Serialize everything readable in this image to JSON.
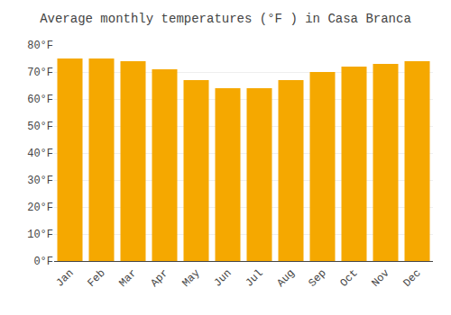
{
  "chart_data": {
    "type": "bar",
    "title": "Average monthly temperatures (°F ) in Casa Branca",
    "categories": [
      "Jan",
      "Feb",
      "Mar",
      "Apr",
      "May",
      "Jun",
      "Jul",
      "Aug",
      "Sep",
      "Oct",
      "Nov",
      "Dec"
    ],
    "values": [
      75,
      75,
      74,
      71,
      67,
      64,
      64,
      67,
      70,
      72,
      73,
      74
    ],
    "color": "#F5A800",
    "ylim": [
      0,
      80
    ],
    "yticks": [
      {
        "value": 0,
        "label": "0°F"
      },
      {
        "value": 10,
        "label": "10°F"
      },
      {
        "value": 20,
        "label": "20°F"
      },
      {
        "value": 30,
        "label": "30°F"
      },
      {
        "value": 40,
        "label": "40°F"
      },
      {
        "value": 50,
        "label": "50°F"
      },
      {
        "value": 60,
        "label": "60°F"
      },
      {
        "value": 70,
        "label": "70°F"
      },
      {
        "value": 80,
        "label": "80°F"
      }
    ],
    "grid": true
  }
}
